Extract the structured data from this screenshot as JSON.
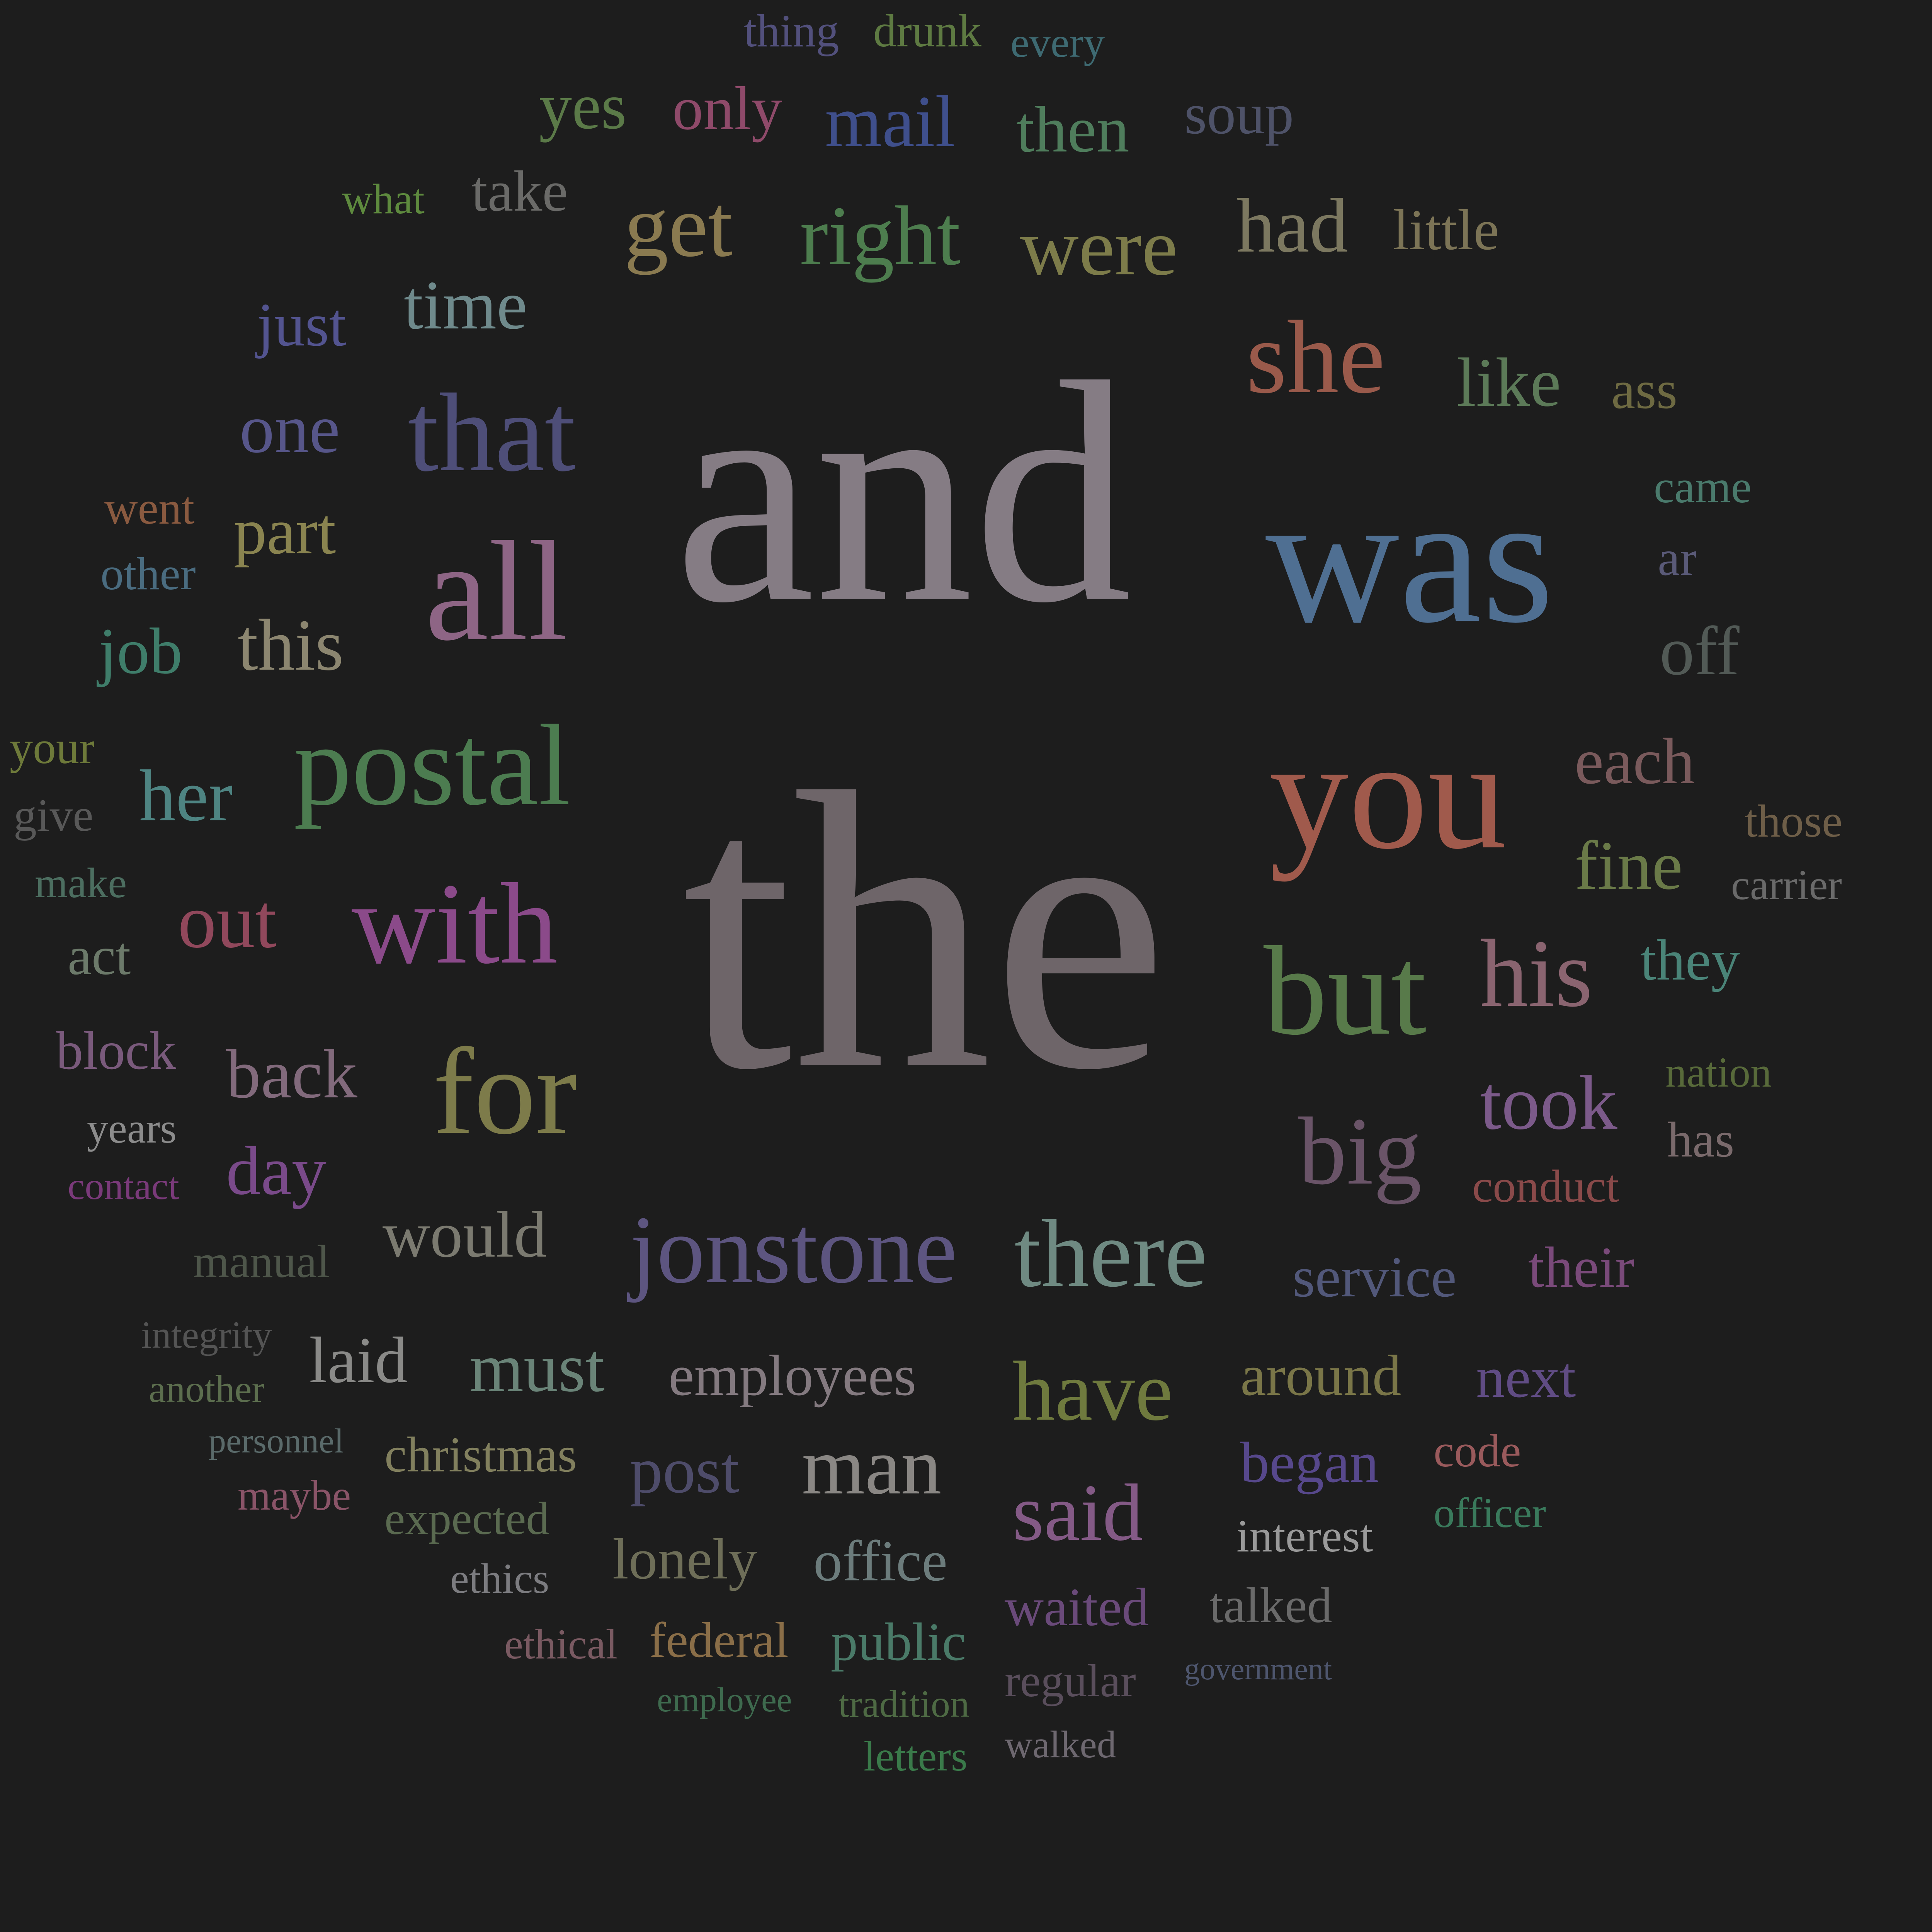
{
  "background": "#1d1d1d",
  "words": [
    {
      "text": "the",
      "color": "#6e6569"
    },
    {
      "text": "and",
      "color": "#857c84"
    },
    {
      "text": "was",
      "color": "#4f6f92"
    },
    {
      "text": "you",
      "color": "#a05a4c"
    },
    {
      "text": "all",
      "color": "#8e6585"
    },
    {
      "text": "postal",
      "color": "#4c7c50"
    },
    {
      "text": "with",
      "color": "#8b4a8a"
    },
    {
      "text": "that",
      "color": "#4e4e78"
    },
    {
      "text": "but",
      "color": "#587a4a"
    },
    {
      "text": "for",
      "color": "#7d7b4a"
    },
    {
      "text": "she",
      "color": "#9a5a4b"
    },
    {
      "text": "his",
      "color": "#8a6470"
    },
    {
      "text": "big",
      "color": "#6a5468"
    },
    {
      "text": "jonstone",
      "color": "#5d5580"
    },
    {
      "text": "there",
      "color": "#6f8a82"
    },
    {
      "text": "get",
      "color": "#8a7a50"
    },
    {
      "text": "right",
      "color": "#4d7d4e"
    },
    {
      "text": "were",
      "color": "#7d7c4a"
    },
    {
      "text": "had",
      "color": "#7c7860"
    },
    {
      "text": "took",
      "color": "#7c5a8a"
    },
    {
      "text": "have",
      "color": "#6f7a3e"
    },
    {
      "text": "said",
      "color": "#845a86"
    },
    {
      "text": "man",
      "color": "#8a8784"
    },
    {
      "text": "out",
      "color": "#91485c"
    },
    {
      "text": "her",
      "color": "#4e8482"
    },
    {
      "text": "this",
      "color": "#8c8670"
    },
    {
      "text": "time",
      "color": "#6f8a8c"
    },
    {
      "text": "one",
      "color": "#57568a"
    },
    {
      "text": "mail",
      "color": "#3f4f8c"
    },
    {
      "text": "like",
      "color": "#5c7a58"
    },
    {
      "text": "fine",
      "color": "#6a7a48"
    },
    {
      "text": "each",
      "color": "#7a5a5c"
    },
    {
      "text": "back",
      "color": "#826a7c"
    },
    {
      "text": "would",
      "color": "#7b7a70"
    },
    {
      "text": "must",
      "color": "#6a8478"
    },
    {
      "text": "laid",
      "color": "#8a8a88"
    },
    {
      "text": "then",
      "color": "#4f7d5c"
    },
    {
      "text": "yes",
      "color": "#5b7a48"
    },
    {
      "text": "only",
      "color": "#8f4a6a"
    },
    {
      "text": "just",
      "color": "#535490"
    },
    {
      "text": "part",
      "color": "#8a8450"
    },
    {
      "text": "job",
      "color": "#3f7d6a"
    },
    {
      "text": "day",
      "color": "#7a4a8a"
    },
    {
      "text": "off",
      "color": "#525a56"
    },
    {
      "text": "they",
      "color": "#4a8478"
    },
    {
      "text": "post",
      "color": "#4e4c6a"
    },
    {
      "text": "employees",
      "color": "#847a80"
    },
    {
      "text": "around",
      "color": "#7a7648"
    },
    {
      "text": "next",
      "color": "#604c84"
    },
    {
      "text": "began",
      "color": "#57488c"
    },
    {
      "text": "lonely",
      "color": "#6e6e58"
    },
    {
      "text": "office",
      "color": "#6c7c7c"
    },
    {
      "text": "service",
      "color": "#52587a"
    },
    {
      "text": "their",
      "color": "#7a4a7a"
    },
    {
      "text": "take",
      "color": "#6a6a68"
    },
    {
      "text": "soup",
      "color": "#4e5268"
    },
    {
      "text": "little",
      "color": "#7c7456"
    },
    {
      "text": "ass",
      "color": "#6e6a42"
    },
    {
      "text": "christmas",
      "color": "#82805e"
    },
    {
      "text": "public",
      "color": "#4a7a68"
    },
    {
      "text": "waited",
      "color": "#6a4a7a"
    },
    {
      "text": "talked",
      "color": "#6a6a6a"
    },
    {
      "text": "federal",
      "color": "#8a6e48"
    },
    {
      "text": "regular",
      "color": "#5a4e5c"
    },
    {
      "text": "interest",
      "color": "#9a9a9a"
    },
    {
      "text": "code",
      "color": "#9a5a5c"
    },
    {
      "text": "conduct",
      "color": "#8a4a4a"
    },
    {
      "text": "has",
      "color": "#7a6a6c"
    },
    {
      "text": "block",
      "color": "#7a5a7c"
    },
    {
      "text": "act",
      "color": "#6c7a6a"
    },
    {
      "text": "came",
      "color": "#4a7a6c"
    },
    {
      "text": "ar",
      "color": "#5a5a78"
    },
    {
      "text": "those",
      "color": "#6e5e48"
    },
    {
      "text": "carrier",
      "color": "#6a6a6a"
    },
    {
      "text": "nation",
      "color": "#586a3a"
    },
    {
      "text": "officer",
      "color": "#3a7a5c"
    },
    {
      "text": "expected",
      "color": "#5a6a50"
    },
    {
      "text": "ethics",
      "color": "#7c7c80"
    },
    {
      "text": "ethical",
      "color": "#7a5a62"
    },
    {
      "text": "went",
      "color": "#8a5a40"
    },
    {
      "text": "other",
      "color": "#4a6c80"
    },
    {
      "text": "your",
      "color": "#6e7a3a"
    },
    {
      "text": "give",
      "color": "#585858"
    },
    {
      "text": "make",
      "color": "#4c6e60"
    },
    {
      "text": "years",
      "color": "#8c8c8c"
    },
    {
      "text": "contact",
      "color": "#7a3a7a"
    },
    {
      "text": "manual",
      "color": "#4e564a"
    },
    {
      "text": "integrity",
      "color": "#545454"
    },
    {
      "text": "another",
      "color": "#5c6e4e"
    },
    {
      "text": "personnel",
      "color": "#5a6a6a"
    },
    {
      "text": "maybe",
      "color": "#8a5468"
    },
    {
      "text": "what",
      "color": "#5e8a3e"
    },
    {
      "text": "thing",
      "color": "#52507c"
    },
    {
      "text": "drunk",
      "color": "#5e7a42"
    },
    {
      "text": "every",
      "color": "#3e6a72"
    },
    {
      "text": "employee",
      "color": "#3e6a4e"
    },
    {
      "text": "tradition",
      "color": "#4e6a44"
    },
    {
      "text": "letters",
      "color": "#3a7a4a"
    },
    {
      "text": "walked",
      "color": "#6e6870"
    },
    {
      "text": "government",
      "color": "#4e566e"
    }
  ]
}
